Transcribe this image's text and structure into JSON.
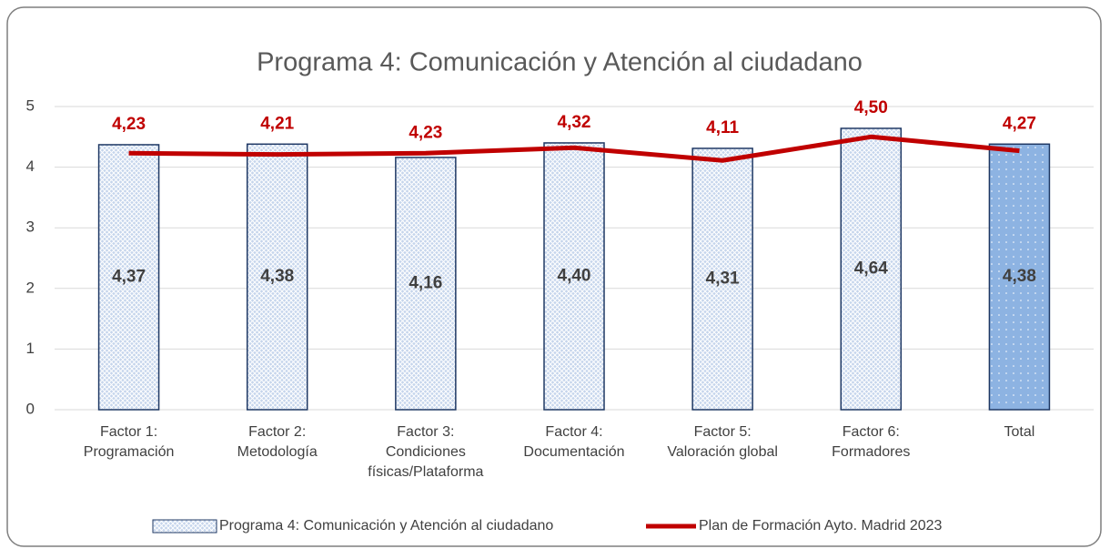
{
  "chart_data": {
    "type": "combo",
    "title": "Programa 4: Comunicación y Atención al ciudadano",
    "categories": [
      "Factor 1: Programación",
      "Factor 2: Metodología",
      "Factor 3: Condiciones físicas/Plataforma",
      "Factor 4: Documentación",
      "Factor 5: Valoración global",
      "Factor 6: Formadores",
      "Total"
    ],
    "series": [
      {
        "name": "Programa 4: Comunicación y Atención al ciudadano",
        "type": "bar",
        "color": "#c5d5ec",
        "point_colors": [
          "#c5d5ec",
          "#c5d5ec",
          "#c5d5ec",
          "#c5d5ec",
          "#c5d5ec",
          "#c5d5ec",
          "#8db3e2"
        ],
        "values": [
          4.37,
          4.38,
          4.16,
          4.4,
          4.31,
          4.64,
          4.38
        ],
        "value_labels": [
          "4,37",
          "4,38",
          "4,16",
          "4,40",
          "4,31",
          "4,64",
          "4,38"
        ]
      },
      {
        "name": "Plan de Formación Ayto. Madrid 2023",
        "type": "line",
        "color": "#c00000",
        "values": [
          4.23,
          4.21,
          4.23,
          4.32,
          4.11,
          4.5,
          4.27
        ],
        "value_labels": [
          "4,23",
          "4,21",
          "4,23",
          "4,32",
          "4,11",
          "4,50",
          "4,27"
        ]
      }
    ],
    "ylim": [
      0,
      5
    ],
    "yticks": [
      0,
      1,
      2,
      3,
      4,
      5
    ],
    "grid": true,
    "legend": "bottom"
  }
}
